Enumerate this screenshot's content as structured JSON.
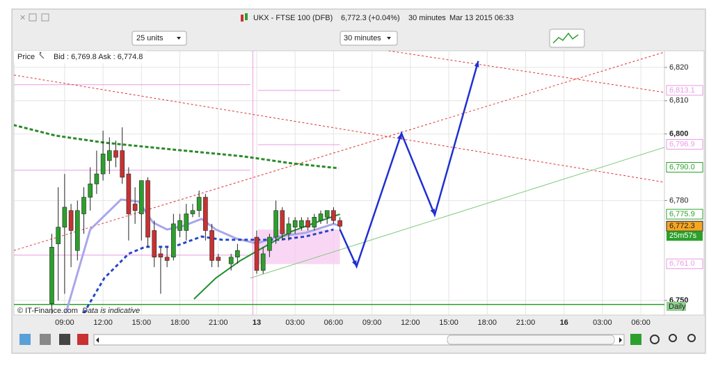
{
  "header": {
    "instrument": "UKX - FTSE 100 (DFB)",
    "quote": "6,772.3 (+0.04%)",
    "interval": "30 minutes",
    "timestamp": "Mar 13 2015 06:33"
  },
  "toolbar": {
    "size_dropdown": "25 units",
    "interval_dropdown": "30 minutes"
  },
  "chart_info": {
    "price_label": "Price",
    "bid_ask": "Bid : 6,769.8 Ask : 6,774.8",
    "copyright": "© IT-Finance.com",
    "disclaimer": "Data is indicative"
  },
  "chart_data": {
    "type": "candlestick",
    "xlim": [
      5.04,
      55.84
    ],
    "ylim": [
      6745.6,
      6825
    ],
    "xticks": [
      {
        "value": 9,
        "label": "09:00"
      },
      {
        "value": 12,
        "label": "12:00"
      },
      {
        "value": 15,
        "label": "15:00"
      },
      {
        "value": 18,
        "label": "18:00"
      },
      {
        "value": 21,
        "label": "21:00"
      },
      {
        "value": 24,
        "label": "13"
      },
      {
        "value": 27,
        "label": "03:00"
      },
      {
        "value": 30,
        "label": "06:00"
      },
      {
        "value": 33,
        "label": "09:00"
      },
      {
        "value": 36,
        "label": "12:00"
      },
      {
        "value": 39,
        "label": "15:00"
      },
      {
        "value": 42,
        "label": "18:00"
      },
      {
        "value": 45,
        "label": "21:00"
      },
      {
        "value": 48,
        "label": "16"
      },
      {
        "value": 51,
        "label": "03:00"
      },
      {
        "value": 54,
        "label": "06:00"
      }
    ],
    "yticks": [
      {
        "value": 6750,
        "label": "6,750"
      },
      {
        "value": 6780,
        "label": "6,780"
      },
      {
        "value": 6800,
        "label": "6,800"
      },
      {
        "value": 6810,
        "label": "6,810"
      },
      {
        "value": 6820,
        "label": "6,820"
      }
    ],
    "grid": true,
    "candles": {
      "up_color": "#2ca02c",
      "down_color": "#c83232",
      "x": [
        8.0,
        8.5,
        9.0,
        9.5,
        10.0,
        10.5,
        11.0,
        11.5,
        12.0,
        12.5,
        13.0,
        13.5,
        14.0,
        14.5,
        15.0,
        15.5,
        16.0,
        16.5,
        17.0,
        17.5,
        18.0,
        18.5,
        19.0,
        19.5,
        20.0,
        20.5,
        21.0,
        22.0,
        22.5,
        24.0,
        24.5,
        25.0,
        25.5,
        26.0,
        26.5,
        27.0,
        27.5,
        28.0,
        28.5,
        29.0,
        29.5,
        30.0,
        30.5
      ],
      "open": [
        6749,
        6767,
        6772,
        6777,
        6765,
        6776,
        6781,
        6785,
        6788,
        6792,
        6795,
        6795,
        6788,
        6779,
        6776,
        6786,
        6771,
        6764,
        6763,
        6763,
        6771,
        6771,
        6776,
        6777,
        6781,
        6771,
        6763,
        6761,
        6763,
        6769,
        6759,
        6765,
        6769,
        6777,
        6770,
        6772,
        6772,
        6774,
        6772,
        6774,
        6775,
        6777,
        6774
      ],
      "high": [
        6770,
        6784,
        6788,
        6779,
        6780,
        6784,
        6790,
        6795,
        6801,
        6799,
        6798,
        6802,
        6790,
        6784,
        6786,
        6787,
        6774,
        6766,
        6766,
        6776,
        6776,
        6779,
        6779,
        6783,
        6782,
        6773,
        6764,
        6764,
        6767,
        6771,
        6766,
        6770,
        6780,
        6778,
        6775,
        6775,
        6775,
        6775,
        6776,
        6777,
        6777,
        6778,
        6775
      ],
      "low": [
        6746,
        6750,
        6752,
        6760,
        6762,
        6770,
        6777,
        6782,
        6786,
        6788,
        6790,
        6785,
        6768,
        6773,
        6768,
        6766,
        6760,
        6752,
        6760,
        6762,
        6769,
        6768,
        6775,
        6775,
        6768,
        6760,
        6760,
        6759,
        6761,
        6758,
        6758,
        6763,
        6767,
        6768,
        6768,
        6770,
        6771,
        6771,
        6771,
        6773,
        6773,
        6773,
        6771
      ],
      "close": [
        6766,
        6772,
        6778,
        6771,
        6777,
        6781,
        6785,
        6788,
        6794,
        6795,
        6793,
        6787,
        6776,
        6777,
        6786,
        6769,
        6763,
        6763,
        6762,
        6773,
        6774,
        6776,
        6777,
        6781,
        6771,
        6762,
        6762,
        6763,
        6765,
        6759,
        6764,
        6769,
        6777,
        6770,
        6773,
        6774,
        6774,
        6772,
        6775,
        6776,
        6777,
        6774,
        6772.3
      ]
    },
    "overlays": [
      {
        "color": "#e89be0",
        "width": 1,
        "x": [
          5.04,
          23.5
        ],
        "values": [
          6814.8,
          6814.8
        ]
      },
      {
        "color": "#e89be0",
        "width": 1,
        "x": [
          5.04,
          23.5
        ],
        "values": [
          6789.1,
          6789.1
        ]
      },
      {
        "color": "#e89be0",
        "width": 1,
        "x": [
          5.04,
          23.5
        ],
        "values": [
          6763.6,
          6763.6
        ]
      },
      {
        "color": "#e89be0",
        "width": 1,
        "x": [
          24.1,
          30.5
        ],
        "values": [
          6813.1,
          6813.1
        ]
      },
      {
        "color": "#e89be0",
        "width": 1,
        "x": [
          24.1,
          30.5
        ],
        "values": [
          6796.8,
          6796.8
        ]
      },
      {
        "color": "#e89be0",
        "width": 1,
        "x": [
          23.7,
          23.7
        ],
        "values": [
          6745.6,
          6825
        ]
      },
      {
        "color": "#e03030",
        "width": 1,
        "dash": "3,3",
        "x": [
          5.04,
          55.84
        ],
        "values": [
          6765.0,
          6824.6
        ]
      },
      {
        "color": "#e03030",
        "width": 1,
        "dash": "3,3",
        "x": [
          5.04,
          55.84
        ],
        "values": [
          6817.7,
          6785.5
        ]
      },
      {
        "color": "#e03030",
        "width": 1,
        "dash": "3,3",
        "x": [
          34.3,
          55.84
        ],
        "values": [
          6825,
          6812.5
        ]
      },
      {
        "color": "#7fc97f",
        "width": 1,
        "x": [
          23.5,
          55.84
        ],
        "values": [
          6756.7,
          6796.0
        ]
      },
      {
        "color": "#2ca02c",
        "width": 1.5,
        "x": [
          5.04,
          55.84
        ],
        "values": [
          6748.8,
          6748.8
        ]
      },
      {
        "color": "#2a8a2a",
        "width": 3,
        "dash": "5,3",
        "x": [
          5.0,
          8.3,
          12.1,
          17.5,
          22.9,
          26.7,
          30.4
        ],
        "values": [
          6802.7,
          6799.5,
          6797.4,
          6795.3,
          6793.3,
          6791.2,
          6789.7
        ]
      },
      {
        "color": "#a9a6ea",
        "width": 3,
        "x": [
          9.1,
          11.0,
          13.4,
          14.8,
          15.9,
          17.0,
          18.3,
          19.7,
          20.8,
          22.4,
          24.0,
          25.7,
          27.8,
          30.0,
          30.5
        ],
        "values": [
          6746.2,
          6771.3,
          6780.3,
          6779.7,
          6773.4,
          6771.3,
          6772.4,
          6774.5,
          6771.3,
          6768.6,
          6767.1,
          6769.2,
          6770.3,
          6773.0,
          6772.4
        ]
      },
      {
        "color": "#2846c8",
        "width": 3,
        "dash": "5,4",
        "x": [
          10.5,
          12.1,
          14.0,
          15.3,
          17.5,
          19.7,
          21.3,
          23.5,
          25.7,
          27.8,
          30.0
        ],
        "values": [
          6746.2,
          6756.7,
          6764.0,
          6766.1,
          6766.1,
          6769.2,
          6768.2,
          6768.2,
          6768.2,
          6769.2,
          6771.3
        ]
      },
      {
        "color": "#1f8f2f",
        "width": 2,
        "x": [
          19.1,
          20.8,
          22.7,
          24.6,
          26.7,
          28.9,
          30.5
        ],
        "values": [
          6750.4,
          6756.7,
          6761.9,
          6766.1,
          6770.7,
          6773.8,
          6775.9
        ]
      },
      {
        "color": "#1f2fd0",
        "width": 2.5,
        "arrows": true,
        "x": [
          30.5,
          31.8,
          35.3,
          37.9,
          41.3
        ],
        "values": [
          6771.3,
          6760.2,
          6800.2,
          6775.7,
          6821.9
        ]
      }
    ],
    "zones": [
      {
        "color": "#f7c6f0",
        "x": [
          24.1,
          30.5
        ],
        "values": [
          6760.9,
          6771.3
        ]
      }
    ],
    "price_labels": [
      {
        "value": 6813.1,
        "label": "6,813.1",
        "color": "#e89be0",
        "fill": "#ffffff"
      },
      {
        "value": 6796.9,
        "label": "6,796.9",
        "color": "#e89be0",
        "fill": "#ffffff"
      },
      {
        "value": 6790.0,
        "label": "6,790.0",
        "color": "#2ca02c",
        "fill": "#ffffff"
      },
      {
        "value": 6775.9,
        "label": "6,775.9",
        "color": "#2ca02c",
        "fill": "#ffffff"
      },
      {
        "value": 6772.3,
        "label": "6,772.3",
        "color": "#222222",
        "fill": "#f5a623"
      },
      {
        "value": 6761.0,
        "label": "6,761.0",
        "color": "#e89be0",
        "fill": "#ffffff"
      }
    ],
    "countdown": "25m57s",
    "daily_label": "Daily"
  }
}
